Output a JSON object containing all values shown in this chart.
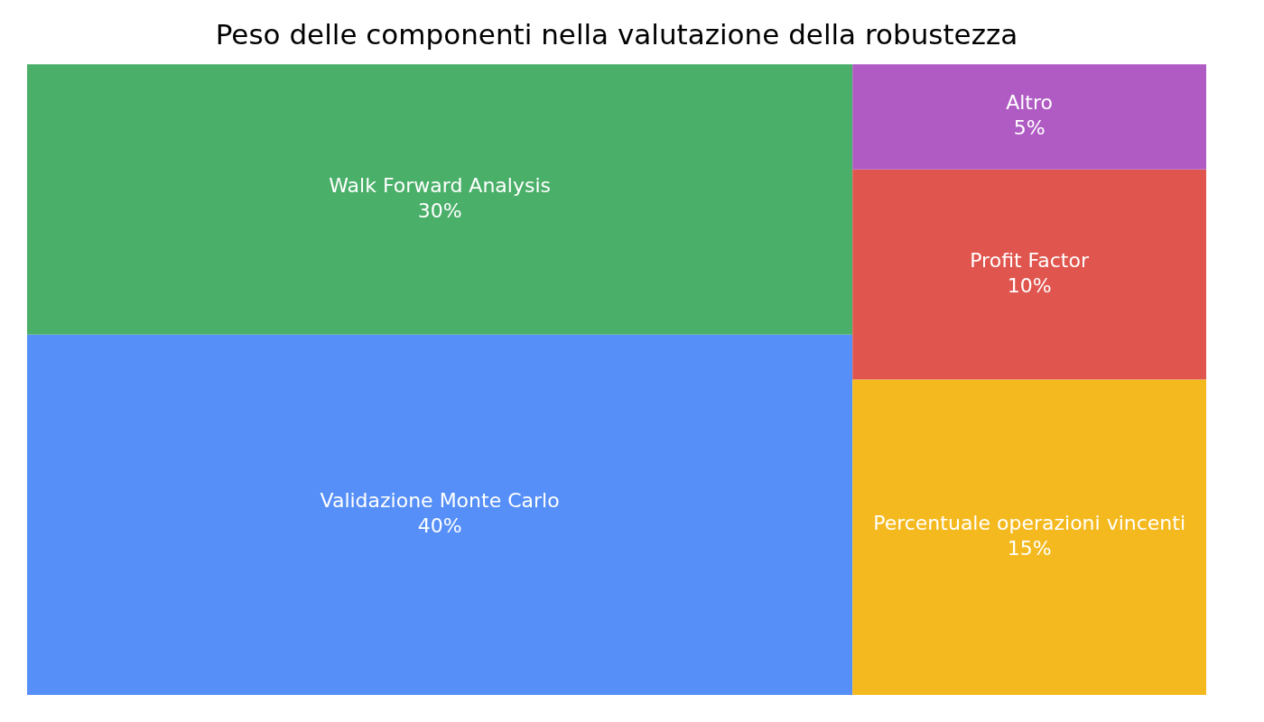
{
  "chart_data": {
    "type": "other",
    "title": "Peso delle componenti nella valutazione della robustezza",
    "categories": [
      "Validazione Monte Carlo",
      "Walk Forward Analysis",
      "Percentuale operazioni vincenti",
      "Profit Factor",
      "Altro"
    ],
    "values": [
      40,
      30,
      15,
      10,
      5
    ],
    "value_labels": [
      "40%",
      "30%",
      "15%",
      "10%",
      "5%"
    ],
    "colors": [
      "#568ff7",
      "#4aaf69",
      "#f4b91e",
      "#e0554e",
      "#b05bc4"
    ]
  }
}
